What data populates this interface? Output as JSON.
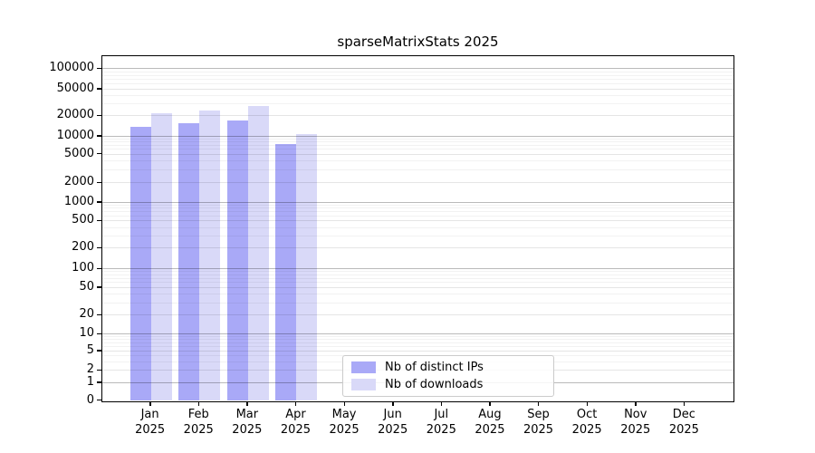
{
  "title": "sparseMatrixStats 2025",
  "chart_data": {
    "type": "bar",
    "title": "sparseMatrixStats 2025",
    "categories": [
      "Jan",
      "Feb",
      "Mar",
      "Apr",
      "May",
      "Jun",
      "Jul",
      "Aug",
      "Sep",
      "Oct",
      "Nov",
      "Dec"
    ],
    "category_year": "2025",
    "xlabel": "",
    "ylabel": "",
    "yscale": "symlog",
    "ylim": [
      0,
      100000
    ],
    "yticks": [
      0,
      1,
      2,
      5,
      10,
      20,
      50,
      100,
      200,
      500,
      1000,
      2000,
      5000,
      10000,
      20000,
      50000,
      100000
    ],
    "grid": "horizontal",
    "legend_position": "lower center-left inside plot",
    "series": [
      {
        "name": "Nb of distinct IPs",
        "color": "#a9a9f7",
        "values": [
          13400,
          15300,
          16600,
          7300,
          null,
          null,
          null,
          null,
          null,
          null,
          null,
          null
        ]
      },
      {
        "name": "Nb of downloads",
        "color": "#d9d9f8",
        "values": [
          21700,
          23500,
          27800,
          10600,
          null,
          null,
          null,
          null,
          null,
          null,
          null,
          null
        ]
      }
    ]
  }
}
